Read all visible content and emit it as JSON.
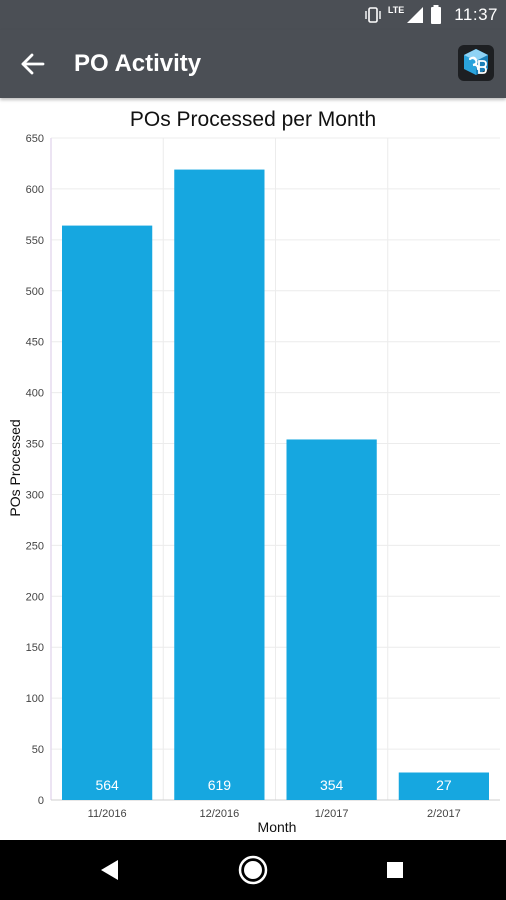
{
  "status_bar": {
    "network_label": "LTE",
    "time": "11:37",
    "icons": [
      "vibrate-icon",
      "signal-icon",
      "battery-icon"
    ]
  },
  "app_bar": {
    "title": "PO Activity",
    "back_icon": "arrow-back-icon",
    "logo_icon": "app-logo-icon",
    "background": "#4b4f55"
  },
  "chart_data": {
    "type": "bar",
    "title": "POs Processed per Month",
    "xlabel": "Month",
    "ylabel": "POs Processed",
    "categories": [
      "11/2016",
      "12/2016",
      "1/2017",
      "2/2017"
    ],
    "values": [
      564,
      619,
      354,
      27
    ],
    "data_labels": [
      "564",
      "619",
      "354",
      "27"
    ],
    "ylim": [
      0,
      650
    ],
    "yticks": [
      0,
      50,
      100,
      150,
      200,
      250,
      300,
      350,
      400,
      450,
      500,
      550,
      600,
      650
    ],
    "bar_color": "#16a7e0",
    "grid": true,
    "legend": "none"
  },
  "nav_bar": {
    "buttons": [
      "back-triangle-icon",
      "home-circle-icon",
      "recents-square-icon"
    ]
  }
}
